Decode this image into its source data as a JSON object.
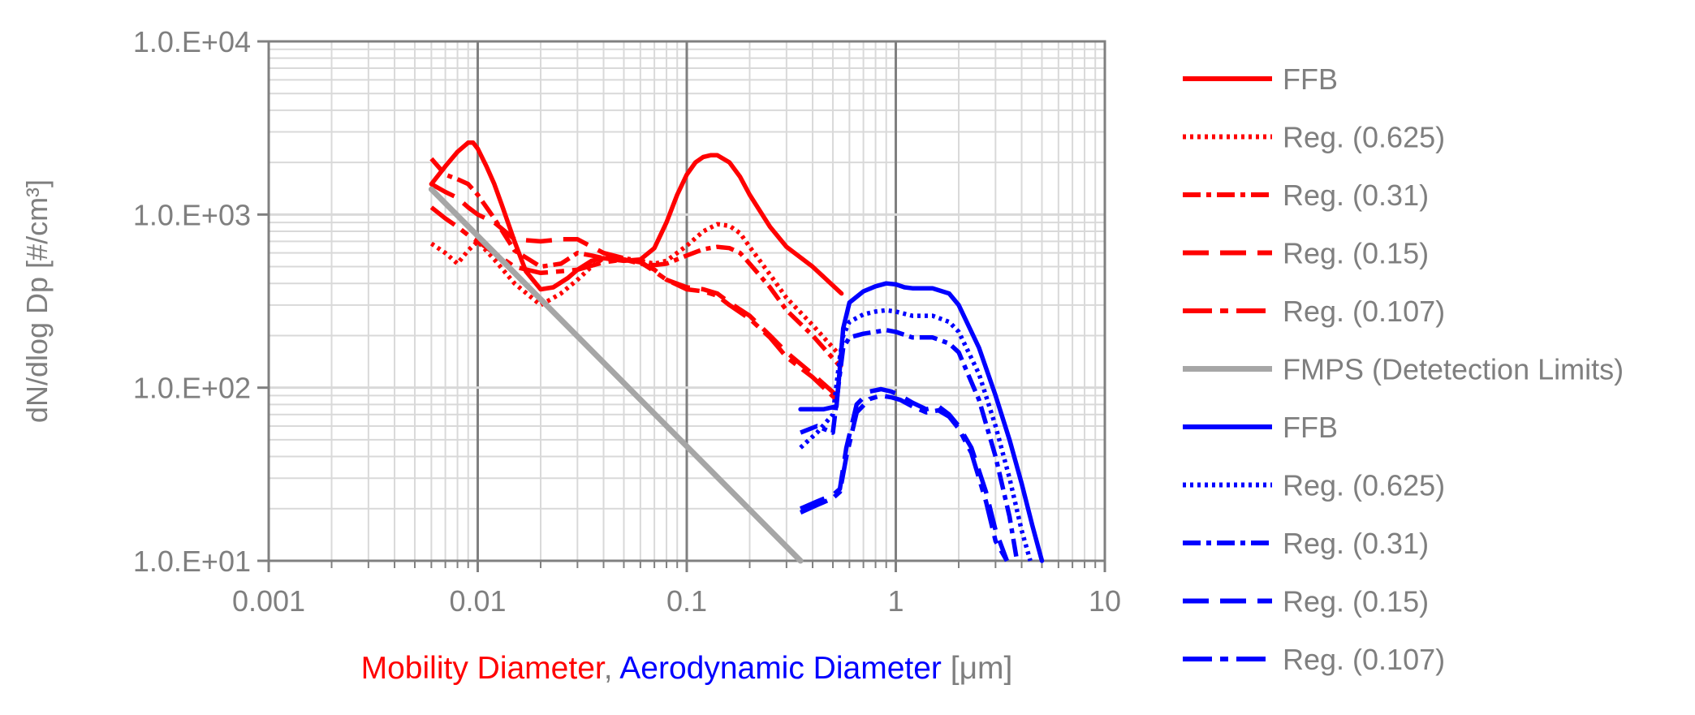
{
  "chart_data": {
    "type": "line",
    "x_scale": "log",
    "y_scale": "log",
    "xlim": [
      0.001,
      10
    ],
    "ylim": [
      10,
      10000
    ],
    "grid": true,
    "legend_position": "right",
    "x_ticks": [
      "0.001",
      "0.01",
      "0.1",
      "1",
      "10"
    ],
    "y_ticks": [
      "1.0.E+01",
      "1.0.E+02",
      "1.0.E+03",
      "1.0.E+04"
    ],
    "xlabel_parts": [
      {
        "text": "Mobility Diameter",
        "color": "#ff0000"
      },
      {
        "text": ", ",
        "color": "#7f7f7f"
      },
      {
        "text": "Aerodynamic Diameter",
        "color": "#0000ff"
      },
      {
        "text": " [μm]",
        "color": "#7f7f7f"
      }
    ],
    "ylabel": "dN/dlog Dp [#/cm³]",
    "colors": {
      "mobility": "#ff0000",
      "aerodynamic": "#0000ff",
      "fmps": "#a6a6a6",
      "axis": "#7f7f7f",
      "grid": "#d9d9d9",
      "major_grid": "#808080"
    },
    "series": [
      {
        "name": "FFB",
        "color": "#ff0000",
        "dash": "solid",
        "x": [
          0.006,
          0.007,
          0.008,
          0.009,
          0.0095,
          0.01,
          0.011,
          0.012,
          0.013,
          0.015,
          0.017,
          0.02,
          0.023,
          0.027,
          0.03,
          0.035,
          0.04,
          0.05,
          0.06,
          0.07,
          0.08,
          0.09,
          0.1,
          0.11,
          0.12,
          0.13,
          0.14,
          0.16,
          0.18,
          0.2,
          0.25,
          0.3,
          0.4,
          0.55
        ],
        "y": [
          1500,
          1900,
          2300,
          2600,
          2600,
          2400,
          1900,
          1500,
          1150,
          700,
          470,
          370,
          380,
          430,
          480,
          540,
          560,
          540,
          550,
          640,
          900,
          1300,
          1700,
          2000,
          2150,
          2200,
          2200,
          2000,
          1650,
          1300,
          850,
          650,
          500,
          350
        ]
      },
      {
        "name": "Reg. (0.625)",
        "color": "#ff0000",
        "dash": "dotted",
        "x": [
          0.006,
          0.007,
          0.008,
          0.009,
          0.01,
          0.012,
          0.015,
          0.02,
          0.025,
          0.03,
          0.035,
          0.04,
          0.05,
          0.06,
          0.07,
          0.08,
          0.1,
          0.12,
          0.14,
          0.16,
          0.18,
          0.2,
          0.25,
          0.3,
          0.4,
          0.55
        ],
        "y": [
          680,
          600,
          520,
          620,
          700,
          550,
          400,
          300,
          350,
          420,
          500,
          560,
          560,
          540,
          520,
          540,
          660,
          800,
          880,
          860,
          780,
          650,
          450,
          330,
          230,
          150
        ]
      },
      {
        "name": "Reg. (0.31)",
        "color": "#ff0000",
        "dash": "dashdot",
        "x": [
          0.006,
          0.007,
          0.008,
          0.009,
          0.01,
          0.012,
          0.015,
          0.02,
          0.025,
          0.03,
          0.035,
          0.04,
          0.05,
          0.06,
          0.07,
          0.08,
          0.1,
          0.12,
          0.14,
          0.16,
          0.18,
          0.2,
          0.25,
          0.3,
          0.4,
          0.55
        ],
        "y": [
          2100,
          1700,
          1600,
          1500,
          1300,
          950,
          620,
          500,
          520,
          600,
          580,
          560,
          550,
          520,
          510,
          520,
          580,
          630,
          650,
          640,
          600,
          520,
          380,
          280,
          200,
          130
        ]
      },
      {
        "name": "Reg. (0.15)",
        "color": "#ff0000",
        "dash": "longdash",
        "x": [
          0.006,
          0.007,
          0.008,
          0.009,
          0.01,
          0.012,
          0.015,
          0.02,
          0.025,
          0.03,
          0.04,
          0.05,
          0.06,
          0.07,
          0.08,
          0.1,
          0.12,
          0.14,
          0.16,
          0.2,
          0.25,
          0.3,
          0.4,
          0.55
        ],
        "y": [
          1500,
          1350,
          1250,
          1100,
          1000,
          900,
          720,
          700,
          720,
          720,
          600,
          560,
          530,
          480,
          420,
          380,
          370,
          350,
          310,
          260,
          200,
          160,
          120,
          85
        ]
      },
      {
        "name": "Reg. (0.107)",
        "color": "#ff0000",
        "dash": "longdashdot",
        "x": [
          0.006,
          0.007,
          0.008,
          0.009,
          0.01,
          0.012,
          0.015,
          0.02,
          0.025,
          0.03,
          0.04,
          0.05,
          0.06,
          0.07,
          0.08,
          0.1,
          0.12,
          0.14,
          0.16,
          0.2,
          0.25,
          0.3,
          0.4,
          0.55
        ],
        "y": [
          1100,
          950,
          850,
          760,
          700,
          600,
          500,
          460,
          470,
          480,
          530,
          550,
          530,
          470,
          420,
          370,
          360,
          340,
          300,
          250,
          195,
          150,
          115,
          80
        ]
      },
      {
        "name": "FMPS (Detetection Limits)",
        "color": "#a6a6a6",
        "dash": "solid",
        "x": [
          0.006,
          0.35
        ],
        "y": [
          1400,
          10
        ]
      },
      {
        "name": "FFB",
        "color": "#0000ff",
        "dash": "solid",
        "x": [
          0.35,
          0.45,
          0.52,
          0.54,
          0.56,
          0.6,
          0.7,
          0.8,
          0.9,
          1.0,
          1.1,
          1.2,
          1.5,
          1.8,
          2.0,
          2.5,
          3.0,
          3.5,
          4.0,
          4.5,
          5.0
        ],
        "y": [
          75,
          75,
          78,
          130,
          220,
          310,
          360,
          385,
          400,
          395,
          380,
          375,
          375,
          350,
          300,
          170,
          90,
          50,
          28,
          16,
          10
        ]
      },
      {
        "name": "Reg. (0.625)",
        "color": "#0000ff",
        "dash": "dotted",
        "x": [
          0.35,
          0.42,
          0.5,
          0.54,
          0.56,
          0.6,
          0.7,
          0.8,
          0.9,
          1.0,
          1.2,
          1.5,
          1.8,
          2.0,
          2.5,
          3.0,
          3.5,
          4.0,
          4.4
        ],
        "y": [
          45,
          55,
          70,
          150,
          200,
          240,
          265,
          275,
          280,
          275,
          260,
          260,
          240,
          210,
          120,
          60,
          30,
          15,
          10
        ]
      },
      {
        "name": "Reg. (0.31)",
        "color": "#0000ff",
        "dash": "dashdot",
        "x": [
          0.35,
          0.42,
          0.5,
          0.54,
          0.56,
          0.6,
          0.7,
          0.8,
          0.9,
          1.0,
          1.2,
          1.5,
          1.8,
          2.0,
          2.5,
          3.0,
          3.5,
          3.8
        ],
        "y": [
          55,
          60,
          55,
          120,
          170,
          195,
          205,
          210,
          215,
          210,
          195,
          195,
          180,
          160,
          85,
          40,
          18,
          10
        ]
      },
      {
        "name": "Reg. (0.15)",
        "color": "#0000ff",
        "dash": "longdash",
        "x": [
          0.35,
          0.42,
          0.5,
          0.54,
          0.58,
          0.65,
          0.75,
          0.85,
          0.95,
          1.05,
          1.2,
          1.4,
          1.6,
          1.8,
          2.0,
          2.3,
          2.7,
          3.0,
          3.4
        ],
        "y": [
          20,
          22,
          24,
          26,
          45,
          80,
          95,
          98,
          95,
          90,
          82,
          75,
          78,
          70,
          60,
          45,
          25,
          15,
          10
        ]
      },
      {
        "name": "Reg. (0.107)",
        "color": "#0000ff",
        "dash": "longdashdot",
        "x": [
          0.35,
          0.42,
          0.5,
          0.54,
          0.58,
          0.65,
          0.75,
          0.85,
          0.95,
          1.05,
          1.2,
          1.4,
          1.6,
          1.8,
          2.0,
          2.3,
          2.7,
          3.0,
          3.4
        ],
        "y": [
          19,
          21,
          23,
          25,
          40,
          72,
          86,
          90,
          88,
          85,
          78,
          72,
          74,
          68,
          58,
          42,
          22,
          13,
          10
        ]
      }
    ]
  }
}
